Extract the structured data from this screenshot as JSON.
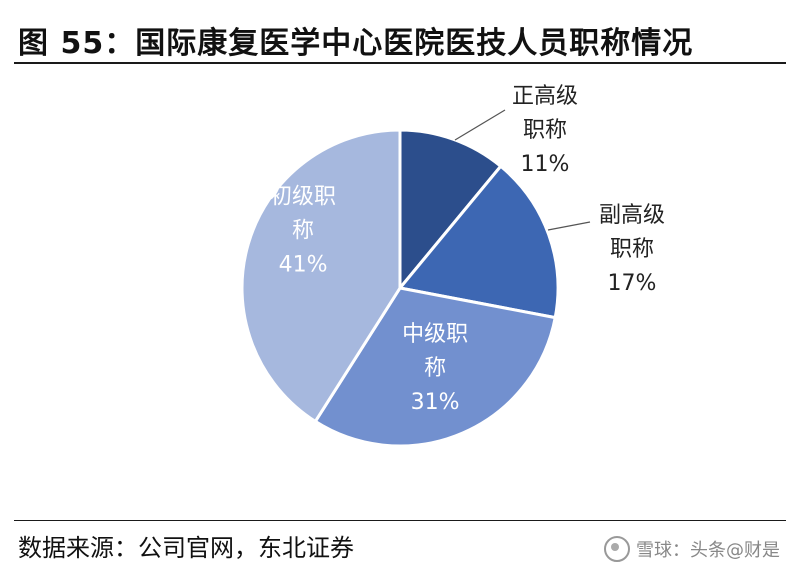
{
  "title": "图 55：国际康复医学中心医院医技人员职称情况",
  "source": "数据来源：公司官网，东北证券",
  "watermark": {
    "text": "雪球：头条@财是"
  },
  "chart_data": {
    "type": "pie",
    "slices": [
      {
        "label_line1": "正高级",
        "label_line2": "职称",
        "pct_label": "11%",
        "value": 11,
        "color": "#2c4e8c",
        "label_pos": "outside"
      },
      {
        "label_line1": "副高级",
        "label_line2": "职称",
        "pct_label": "17%",
        "value": 17,
        "color": "#3d67b3",
        "label_pos": "outside"
      },
      {
        "label_line1": "中级职",
        "label_line2": "称",
        "pct_label": "31%",
        "value": 31,
        "color": "#7290cf",
        "label_pos": "inside"
      },
      {
        "label_line1": "初级职",
        "label_line2": "称",
        "pct_label": "41%",
        "value": 41,
        "color": "#a6b8de",
        "label_pos": "inside"
      }
    ]
  }
}
